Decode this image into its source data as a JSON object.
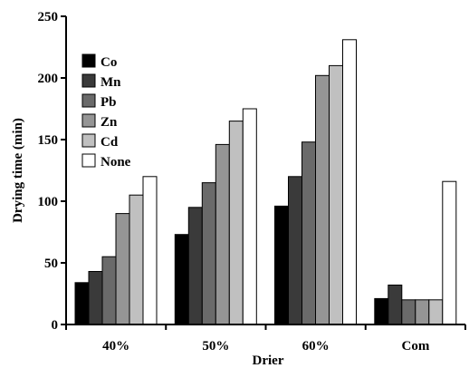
{
  "chart_data": {
    "type": "bar",
    "title": "",
    "xlabel": "Drier",
    "ylabel": "Drying time (min)",
    "ylim": [
      0,
      250
    ],
    "yticks": [
      0,
      50,
      100,
      150,
      200,
      250
    ],
    "categories": [
      "40%",
      "50%",
      "60%",
      "Com"
    ],
    "series": [
      {
        "name": "Co",
        "color": "#000000",
        "values": [
          34,
          73,
          96,
          21
        ]
      },
      {
        "name": "Mn",
        "color": "#3a3a3a",
        "values": [
          43,
          95,
          120,
          32
        ]
      },
      {
        "name": "Pb",
        "color": "#6a6a6a",
        "values": [
          55,
          115,
          148,
          20
        ]
      },
      {
        "name": "Zn",
        "color": "#959595",
        "values": [
          90,
          146,
          202,
          20
        ]
      },
      {
        "name": "Cd",
        "color": "#c0c0c0",
        "values": [
          105,
          165,
          210,
          20
        ]
      },
      {
        "name": "None",
        "color": "#ffffff",
        "values": [
          120,
          175,
          231,
          116
        ]
      }
    ],
    "grid": false,
    "legend_position": "top-left"
  }
}
